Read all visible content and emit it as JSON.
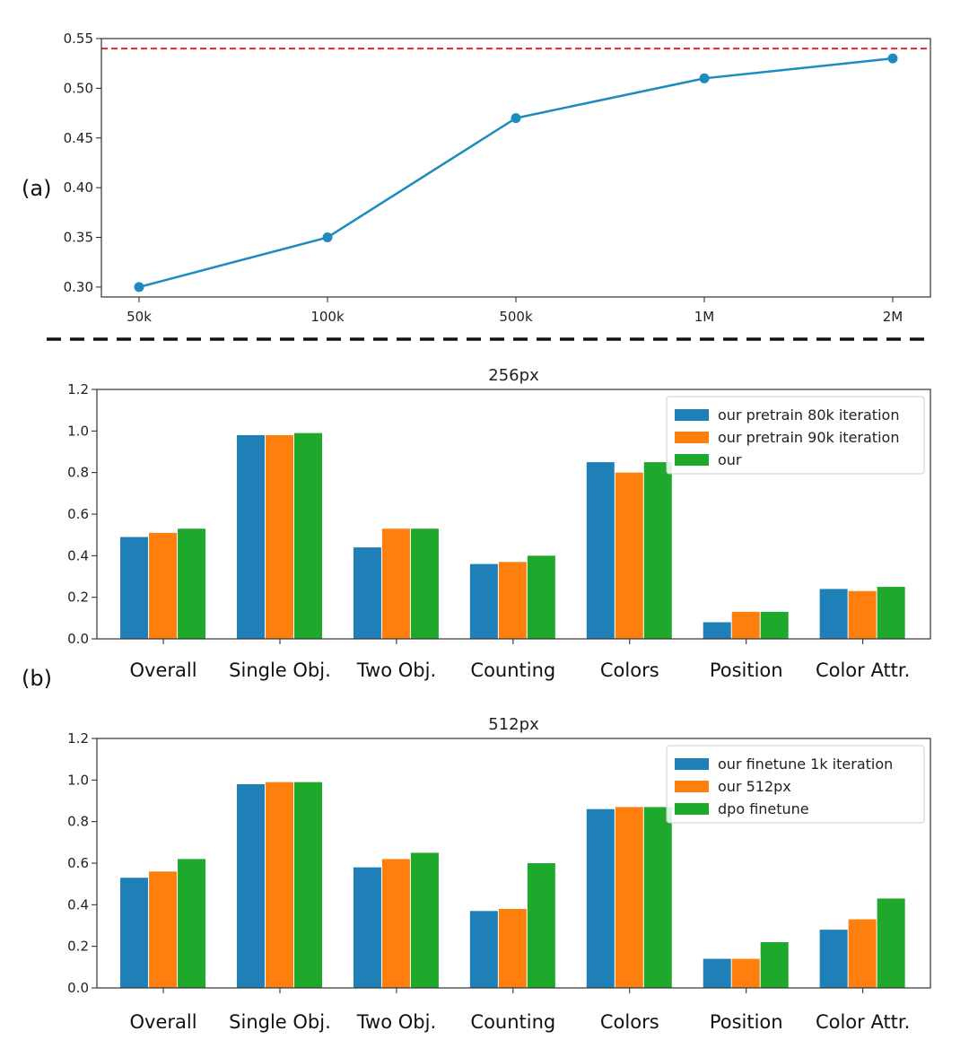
{
  "panel_labels": {
    "a": "(a)",
    "b": "(b)"
  },
  "colors": {
    "line": "#1f8ac0",
    "ref": "#e8242b",
    "blue": "#1f80b8",
    "orange": "#ff7f0e",
    "green": "#1ea82c",
    "divider": "#111111"
  },
  "chart_data": [
    {
      "type": "line",
      "x": [
        "50k",
        "100k",
        "500k",
        "1M",
        "2M"
      ],
      "values": [
        0.3,
        0.35,
        0.47,
        0.51,
        0.53
      ],
      "reference_line": 0.54,
      "ylim": [
        0.29,
        0.55
      ],
      "yticks": [
        "0.30",
        "0.35",
        "0.40",
        "0.45",
        "0.50",
        "0.55"
      ],
      "title": "",
      "xlabel": "",
      "ylabel": ""
    },
    {
      "type": "bar",
      "title": "256px",
      "categories": [
        "Overall",
        "Single Obj.",
        "Two Obj.",
        "Counting",
        "Colors",
        "Position",
        "Color Attr."
      ],
      "series": [
        {
          "name": "our pretrain 80k iteration",
          "values": [
            0.49,
            0.98,
            0.44,
            0.36,
            0.85,
            0.08,
            0.24
          ]
        },
        {
          "name": "our pretrain 90k iteration",
          "values": [
            0.51,
            0.98,
            0.53,
            0.37,
            0.8,
            0.13,
            0.23
          ]
        },
        {
          "name": "our",
          "values": [
            0.53,
            0.99,
            0.53,
            0.4,
            0.85,
            0.13,
            0.25
          ]
        }
      ],
      "ylim": [
        0,
        1.2
      ],
      "yticks": [
        "0.0",
        "0.2",
        "0.4",
        "0.6",
        "0.8",
        "1.0",
        "1.2"
      ],
      "legend": "top-right"
    },
    {
      "type": "bar",
      "title": "512px",
      "categories": [
        "Overall",
        "Single Obj.",
        "Two Obj.",
        "Counting",
        "Colors",
        "Position",
        "Color Attr."
      ],
      "series": [
        {
          "name": "our finetune 1k iteration",
          "values": [
            0.53,
            0.98,
            0.58,
            0.37,
            0.86,
            0.14,
            0.28
          ]
        },
        {
          "name": "our 512px",
          "values": [
            0.56,
            0.99,
            0.62,
            0.38,
            0.87,
            0.14,
            0.33
          ]
        },
        {
          "name": "dpo finetune",
          "values": [
            0.62,
            0.99,
            0.65,
            0.6,
            0.87,
            0.22,
            0.43
          ]
        }
      ],
      "ylim": [
        0,
        1.2
      ],
      "yticks": [
        "0.0",
        "0.2",
        "0.4",
        "0.6",
        "0.8",
        "1.0",
        "1.2"
      ],
      "legend": "top-right"
    }
  ]
}
